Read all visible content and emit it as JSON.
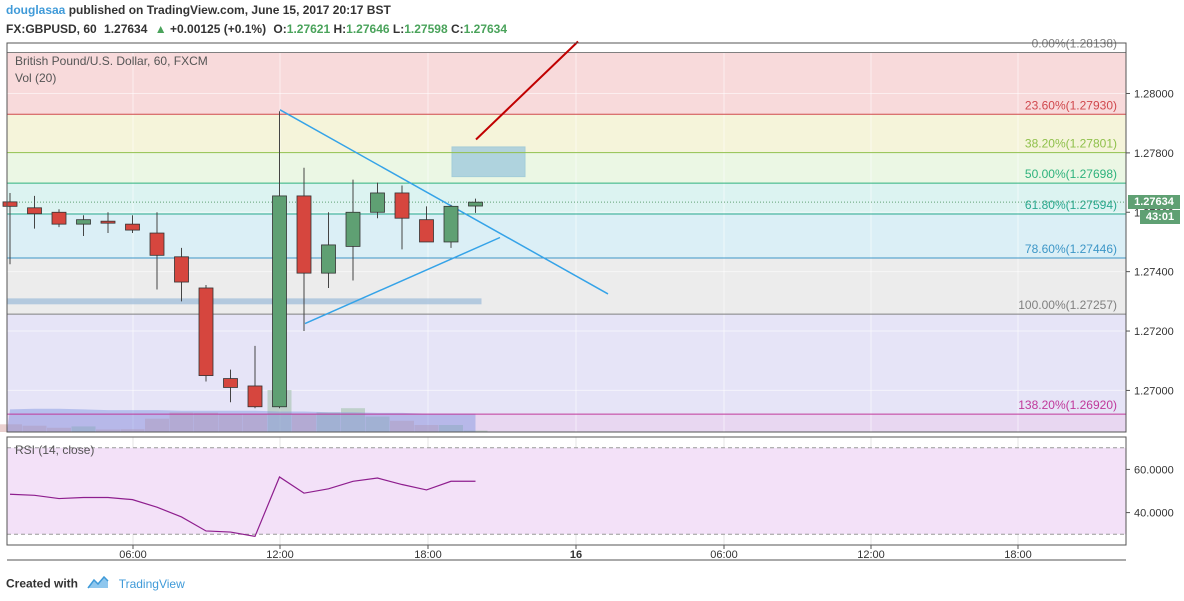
{
  "header": {
    "author": "douglasaa",
    "published_text": "published on TradingView.com, June 15, 2017 20:17 BST",
    "symbol": "FX:GBPUSD, 60",
    "last": "1.27634",
    "change": "+0.00125 (+0.1%)",
    "o_label": "O:",
    "o_value": "1.27621",
    "h_label": "H:",
    "h_value": "1.27646",
    "l_label": "L:",
    "l_value": "1.27598",
    "c_label": "C:",
    "c_value": "1.27634"
  },
  "legend": {
    "title": "British Pound/U.S. Dollar, 60, FXCM",
    "volume": "Vol (20)",
    "rsi": "RSI (14, close)"
  },
  "price_badge": {
    "price": "1.27634",
    "countdown": "43:01"
  },
  "footer": {
    "created_with": "Created with",
    "brand": "TradingView"
  },
  "colors": {
    "up": "#5fa073",
    "down": "#d6463e",
    "fib_line_teal": "#2aa88f",
    "trend": "#35a3e8",
    "arrow": "#c00000"
  },
  "chart_data": {
    "type": "candlestick",
    "price_axis": {
      "min": 1.2686,
      "max": 1.2817,
      "ticks": [
        "1.28000",
        "1.27800",
        "1.27600",
        "1.27400",
        "1.27200",
        "1.27000"
      ]
    },
    "time_axis": {
      "ticks": [
        "06:00",
        "12:00",
        "18:00",
        "16",
        "06:00",
        "12:00",
        "18:00"
      ]
    },
    "candles": [
      {
        "o": 1.27635,
        "h": 1.27665,
        "l": 1.27425,
        "c": 1.2762
      },
      {
        "o": 1.27615,
        "h": 1.27655,
        "l": 1.27545,
        "c": 1.27595
      },
      {
        "o": 1.276,
        "h": 1.2761,
        "l": 1.2755,
        "c": 1.2756
      },
      {
        "o": 1.2756,
        "h": 1.2759,
        "l": 1.2752,
        "c": 1.27575
      },
      {
        "o": 1.2757,
        "h": 1.276,
        "l": 1.2753,
        "c": 1.27565
      },
      {
        "o": 1.2756,
        "h": 1.2759,
        "l": 1.2753,
        "c": 1.2754
      },
      {
        "o": 1.2753,
        "h": 1.276,
        "l": 1.2734,
        "c": 1.27455
      },
      {
        "o": 1.2745,
        "h": 1.2748,
        "l": 1.273,
        "c": 1.27365
      },
      {
        "o": 1.27345,
        "h": 1.27355,
        "l": 1.2703,
        "c": 1.2705
      },
      {
        "o": 1.2704,
        "h": 1.2707,
        "l": 1.2696,
        "c": 1.2701
      },
      {
        "o": 1.27015,
        "h": 1.2715,
        "l": 1.2694,
        "c": 1.26945
      },
      {
        "o": 1.26945,
        "h": 1.2794,
        "l": 1.2694,
        "c": 1.27655
      },
      {
        "o": 1.27655,
        "h": 1.2775,
        "l": 1.272,
        "c": 1.27395
      },
      {
        "o": 1.27395,
        "h": 1.276,
        "l": 1.27345,
        "c": 1.2749
      },
      {
        "o": 1.27485,
        "h": 1.2771,
        "l": 1.2737,
        "c": 1.276
      },
      {
        "o": 1.276,
        "h": 1.277,
        "l": 1.2758,
        "c": 1.27665
      },
      {
        "o": 1.27665,
        "h": 1.2769,
        "l": 1.27475,
        "c": 1.2758
      },
      {
        "o": 1.27575,
        "h": 1.2762,
        "l": 1.275,
        "c": 1.275
      },
      {
        "o": 1.275,
        "h": 1.27625,
        "l": 1.2748,
        "c": 1.2762
      },
      {
        "o": 1.27621,
        "h": 1.27646,
        "l": 1.27598,
        "c": 1.27634
      }
    ],
    "volume": [
      0.55,
      0.45,
      0.3,
      0.4,
      0.18,
      0.2,
      0.95,
      1.4,
      1.38,
      1.25,
      1.3,
      3.0,
      1.3,
      1.4,
      1.7,
      1.1,
      0.8,
      0.5,
      0.5,
      0.1
    ],
    "fibonacci": [
      {
        "label": "0.00%(1.28138)",
        "price": 1.28138,
        "color": "#808080"
      },
      {
        "label": "23.60%(1.27930)",
        "price": 1.2793,
        "color": "#d0484d"
      },
      {
        "label": "38.20%(1.27801)",
        "price": 1.27801,
        "color": "#8fc04b"
      },
      {
        "label": "50.00%(1.27698)",
        "price": 1.27698,
        "color": "#2eb27c"
      },
      {
        "label": "61.80%(1.27594)",
        "price": 1.27594,
        "color": "#2aa88f"
      },
      {
        "label": "78.60%(1.27446)",
        "price": 1.27446,
        "color": "#3c96c7"
      },
      {
        "label": "100.00%(1.27257)",
        "price": 1.27257,
        "color": "#808080"
      },
      {
        "label": "138.20%(1.26920)",
        "price": 1.2692,
        "color": "#c0399b"
      }
    ],
    "rsi": {
      "ylim": [
        25,
        75
      ],
      "ticks": [
        "60.0000",
        "40.0000"
      ],
      "levels": [
        70,
        30
      ],
      "values": [
        48.5,
        48.0,
        46.5,
        47.0,
        47.0,
        46.0,
        42.5,
        38.0,
        31.5,
        31.0,
        29.0,
        56.5,
        49.0,
        51.0,
        54.5,
        56.0,
        53.0,
        50.5,
        54.5,
        54.5
      ]
    }
  }
}
